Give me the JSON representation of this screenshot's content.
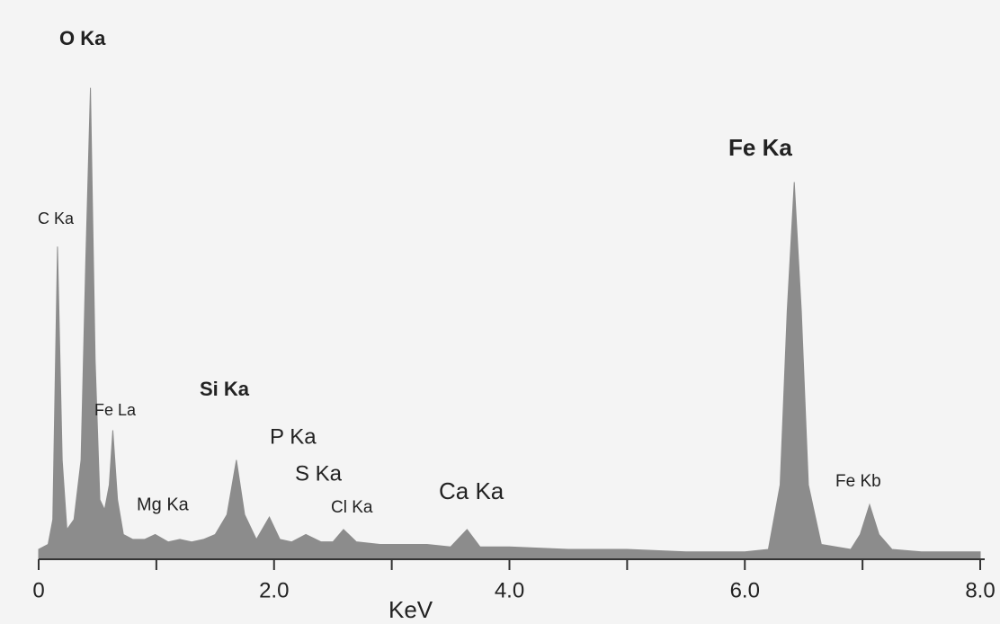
{
  "chart_data": {
    "type": "area",
    "x_label": "KeV",
    "x": [
      0.0,
      0.08,
      0.12,
      0.16,
      0.2,
      0.24,
      0.3,
      0.36,
      0.4,
      0.44,
      0.48,
      0.52,
      0.56,
      0.6,
      0.63,
      0.67,
      0.72,
      0.8,
      0.9,
      0.99,
      1.1,
      1.2,
      1.3,
      1.4,
      1.5,
      1.6,
      1.68,
      1.75,
      1.85,
      1.96,
      2.05,
      2.15,
      2.27,
      2.4,
      2.5,
      2.59,
      2.7,
      2.9,
      3.1,
      3.3,
      3.5,
      3.64,
      3.75,
      4.0,
      4.5,
      5.0,
      5.5,
      6.0,
      6.2,
      6.3,
      6.36,
      6.42,
      6.48,
      6.54,
      6.65,
      6.9,
      6.98,
      7.06,
      7.14,
      7.25,
      7.5,
      8.0
    ],
    "values": [
      2,
      3,
      8,
      63,
      20,
      6,
      8,
      20,
      60,
      95,
      40,
      12,
      10,
      15,
      26,
      12,
      5,
      4,
      4,
      5,
      3.5,
      4,
      3.5,
      4,
      5,
      9,
      20,
      9,
      4,
      8.5,
      4,
      3.5,
      5,
      3.5,
      3.5,
      6,
      3.5,
      3,
      3,
      3,
      2.5,
      6,
      2.5,
      2.5,
      2,
      2,
      1.5,
      1.5,
      2,
      15,
      50,
      76,
      50,
      15,
      3,
      2,
      5,
      11,
      5,
      2,
      1.5,
      1.5
    ],
    "color": "#8c8c8c",
    "xlim": [
      0,
      8
    ],
    "ylim": [
      0,
      100
    ],
    "xticks": [
      0,
      {
        "value": 2,
        "label": "2.0"
      },
      {
        "value": 4,
        "label": "4.0"
      },
      {
        "value": 6,
        "label": "6.0"
      },
      {
        "value": 8,
        "label": "8.0"
      }
    ],
    "xminor_ticks": [
      1,
      3,
      5,
      7
    ],
    "annotations": [
      "O Ka",
      "C Ka",
      "Fe La",
      "Mg Ka",
      "Si Ka",
      "P Ka",
      "S Ka",
      "Cl Ka",
      "Ca Ka",
      "Fe Ka",
      "Fe Kb"
    ]
  }
}
